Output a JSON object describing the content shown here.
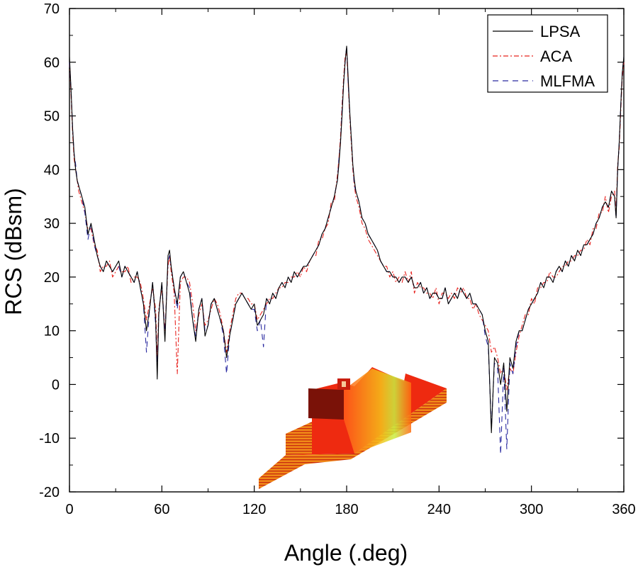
{
  "chart_data": {
    "type": "line",
    "title": "",
    "xlabel": "Angle (.deg)",
    "ylabel": "RCS (dBsm)",
    "xlim": [
      0,
      360
    ],
    "ylim": [
      -20,
      70
    ],
    "xticks": [
      0,
      60,
      120,
      180,
      240,
      300,
      360
    ],
    "yticks": [
      -20,
      -10,
      0,
      10,
      20,
      30,
      40,
      50,
      60,
      70
    ],
    "legend_position": "top-right",
    "colors": {
      "LPSA": "#000000",
      "ACA": "#e8231f",
      "MLFMA": "#2a2aa0"
    },
    "inset_description": "ship-model-3d-mesh",
    "series": [
      {
        "name": "LPSA",
        "style": "solid",
        "x": [
          0,
          1,
          2,
          3,
          4,
          5,
          6,
          8,
          10,
          12,
          14,
          16,
          18,
          20,
          22,
          24,
          26,
          28,
          30,
          32,
          34,
          36,
          38,
          40,
          42,
          44,
          46,
          48,
          50,
          52,
          54,
          56,
          57,
          58,
          60,
          62,
          64,
          65,
          66,
          68,
          70,
          72,
          74,
          76,
          78,
          80,
          82,
          84,
          86,
          88,
          90,
          92,
          94,
          96,
          98,
          100,
          102,
          104,
          106,
          108,
          110,
          112,
          114,
          116,
          118,
          120,
          122,
          124,
          126,
          128,
          130,
          132,
          134,
          136,
          138,
          140,
          142,
          144,
          146,
          148,
          150,
          152,
          154,
          156,
          158,
          160,
          162,
          164,
          166,
          168,
          170,
          172,
          174,
          175,
          176,
          177,
          178,
          179,
          180,
          181,
          182,
          183,
          184,
          185,
          186,
          188,
          190,
          192,
          194,
          196,
          198,
          200,
          202,
          204,
          206,
          208,
          210,
          212,
          214,
          216,
          218,
          220,
          222,
          224,
          226,
          228,
          230,
          232,
          234,
          236,
          238,
          240,
          242,
          244,
          246,
          248,
          250,
          252,
          254,
          256,
          258,
          260,
          262,
          264,
          266,
          268,
          270,
          272,
          274,
          276,
          278,
          280,
          282,
          284,
          286,
          288,
          290,
          292,
          294,
          296,
          298,
          300,
          302,
          304,
          306,
          308,
          310,
          312,
          314,
          316,
          318,
          320,
          322,
          324,
          326,
          328,
          330,
          332,
          334,
          336,
          338,
          340,
          342,
          344,
          346,
          348,
          350,
          352,
          354,
          355,
          356,
          357,
          358,
          359,
          360
        ],
        "y": [
          61,
          55,
          48,
          43,
          40,
          38,
          37,
          35,
          33,
          28,
          30,
          27,
          24,
          22,
          21,
          23,
          22,
          21,
          22,
          23,
          20,
          22,
          21,
          20,
          19,
          21,
          18,
          15,
          10,
          14,
          19,
          12,
          1,
          13,
          19,
          8,
          24,
          25,
          22,
          18,
          15,
          20,
          21,
          19,
          17,
          12,
          8,
          14,
          16,
          9,
          11,
          15,
          16,
          14,
          12,
          10,
          5,
          9,
          12,
          15,
          16,
          17,
          16,
          15,
          14,
          15,
          11,
          12,
          13,
          16,
          15,
          17,
          16,
          18,
          19,
          18,
          20,
          19,
          21,
          20,
          21,
          22,
          22,
          23,
          24,
          25,
          26,
          28,
          29,
          31,
          33,
          35,
          38,
          41,
          45,
          50,
          56,
          60,
          63,
          57,
          51,
          46,
          41,
          38,
          36,
          34,
          31,
          30,
          28,
          27,
          26,
          25,
          23,
          22,
          21,
          21,
          20,
          20,
          19,
          20,
          20,
          19,
          20,
          18,
          18,
          19,
          17,
          18,
          16,
          17,
          17,
          16,
          16,
          18,
          15,
          16,
          17,
          16,
          18,
          17,
          16,
          17,
          15,
          15,
          14,
          13,
          10,
          8,
          -9,
          5,
          4,
          0,
          4,
          -5,
          5,
          3,
          8,
          10,
          10,
          12,
          14,
          15,
          16,
          17,
          19,
          18,
          20,
          20,
          19,
          21,
          22,
          21,
          23,
          22,
          24,
          23,
          25,
          24,
          26,
          26,
          27,
          28,
          30,
          31,
          33,
          34,
          33,
          36,
          35,
          31,
          40,
          45,
          52,
          58,
          61
        ]
      },
      {
        "name": "ACA",
        "style": "dash-dot",
        "x": [
          0,
          1,
          2,
          3,
          4,
          5,
          6,
          8,
          10,
          12,
          14,
          16,
          18,
          20,
          22,
          24,
          26,
          28,
          30,
          32,
          34,
          36,
          38,
          40,
          42,
          44,
          46,
          48,
          50,
          52,
          54,
          56,
          57,
          58,
          60,
          62,
          64,
          65,
          66,
          68,
          70,
          72,
          74,
          76,
          78,
          80,
          82,
          84,
          86,
          88,
          90,
          92,
          94,
          96,
          98,
          100,
          102,
          104,
          106,
          108,
          110,
          112,
          114,
          116,
          118,
          120,
          122,
          124,
          126,
          128,
          130,
          132,
          134,
          136,
          138,
          140,
          142,
          144,
          146,
          148,
          150,
          152,
          154,
          156,
          158,
          160,
          162,
          164,
          166,
          168,
          170,
          172,
          174,
          175,
          176,
          177,
          178,
          179,
          180,
          181,
          182,
          183,
          184,
          185,
          186,
          188,
          190,
          192,
          194,
          196,
          198,
          200,
          202,
          204,
          206,
          208,
          210,
          212,
          214,
          216,
          218,
          220,
          222,
          224,
          226,
          228,
          230,
          232,
          234,
          236,
          238,
          240,
          242,
          244,
          246,
          248,
          250,
          252,
          254,
          256,
          258,
          260,
          262,
          264,
          266,
          268,
          270,
          272,
          274,
          276,
          278,
          280,
          282,
          284,
          286,
          288,
          290,
          292,
          294,
          296,
          298,
          300,
          302,
          304,
          306,
          308,
          310,
          312,
          314,
          316,
          318,
          320,
          322,
          324,
          326,
          328,
          330,
          332,
          334,
          336,
          338,
          340,
          342,
          344,
          346,
          348,
          350,
          352,
          354,
          355,
          356,
          357,
          358,
          359,
          360
        ],
        "y": [
          60,
          54,
          47,
          42,
          40,
          38,
          36,
          34,
          32,
          29,
          29,
          26,
          25,
          21,
          22,
          22,
          23,
          20,
          21,
          22,
          21,
          21,
          22,
          19,
          20,
          20,
          19,
          16,
          12,
          15,
          18,
          14,
          5,
          14,
          18,
          10,
          22,
          24,
          21,
          17,
          2,
          19,
          20,
          20,
          19,
          15,
          10,
          13,
          15,
          11,
          12,
          14,
          16,
          15,
          13,
          10,
          6,
          10,
          13,
          16,
          17,
          17,
          16,
          16,
          15,
          15,
          12,
          13,
          14,
          15,
          16,
          16,
          17,
          18,
          18,
          19,
          19,
          20,
          20,
          21,
          20,
          22,
          21,
          23,
          24,
          24,
          27,
          27,
          29,
          30,
          34,
          34,
          39,
          42,
          46,
          52,
          57,
          61,
          62,
          56,
          50,
          45,
          40,
          37,
          35,
          33,
          30,
          29,
          27,
          26,
          25,
          24,
          23,
          22,
          22,
          20,
          21,
          19,
          20,
          19,
          21,
          19,
          21,
          17,
          19,
          18,
          18,
          17,
          17,
          16,
          18,
          15,
          17,
          17,
          16,
          17,
          16,
          18,
          17,
          18,
          16,
          16,
          14,
          15,
          13,
          12,
          11,
          10,
          6,
          7,
          5,
          2,
          3,
          -1,
          3,
          2,
          6,
          9,
          11,
          13,
          13,
          16,
          15,
          18,
          18,
          19,
          19,
          21,
          20,
          20,
          21,
          22,
          22,
          23,
          23,
          24,
          24,
          25,
          25,
          27,
          26,
          29,
          29,
          32,
          32,
          35,
          32,
          35,
          36,
          32,
          41,
          44,
          51,
          57,
          60
        ]
      },
      {
        "name": "MLFMA",
        "style": "dashed",
        "x": [
          0,
          1,
          2,
          3,
          4,
          5,
          6,
          8,
          10,
          12,
          14,
          16,
          18,
          20,
          22,
          24,
          26,
          28,
          30,
          32,
          34,
          36,
          38,
          40,
          42,
          44,
          46,
          48,
          50,
          52,
          54,
          56,
          57,
          58,
          60,
          62,
          64,
          65,
          66,
          68,
          70,
          72,
          74,
          76,
          78,
          80,
          82,
          84,
          86,
          88,
          90,
          92,
          94,
          96,
          98,
          100,
          102,
          104,
          106,
          108,
          110,
          112,
          114,
          116,
          118,
          120,
          122,
          124,
          126,
          128,
          130,
          132,
          134,
          136,
          138,
          140,
          142,
          144,
          146,
          148,
          150,
          152,
          154,
          156,
          158,
          160,
          162,
          164,
          166,
          168,
          170,
          172,
          174,
          175,
          176,
          177,
          178,
          179,
          180,
          181,
          182,
          183,
          184,
          185,
          186,
          188,
          190,
          192,
          194,
          196,
          198,
          200,
          202,
          204,
          206,
          208,
          210,
          212,
          214,
          216,
          218,
          220,
          222,
          224,
          226,
          228,
          230,
          232,
          234,
          236,
          238,
          240,
          242,
          244,
          246,
          248,
          250,
          252,
          254,
          256,
          258,
          260,
          262,
          264,
          266,
          268,
          270,
          272,
          274,
          276,
          278,
          280,
          282,
          284,
          286,
          288,
          290,
          292,
          294,
          296,
          298,
          300,
          302,
          304,
          306,
          308,
          310,
          312,
          314,
          316,
          318,
          320,
          322,
          324,
          326,
          328,
          330,
          332,
          334,
          336,
          338,
          340,
          342,
          344,
          346,
          348,
          350,
          352,
          354,
          355,
          356,
          357,
          358,
          359,
          360
        ],
        "y": [
          60,
          55,
          48,
          43,
          41,
          38,
          37,
          35,
          32,
          27,
          30,
          26,
          24,
          22,
          21,
          23,
          22,
          21,
          22,
          22,
          20,
          22,
          21,
          20,
          19,
          21,
          18,
          15,
          6,
          14,
          19,
          11,
          3,
          13,
          19,
          9,
          23,
          24,
          22,
          18,
          14,
          20,
          21,
          19,
          18,
          12,
          9,
          14,
          16,
          10,
          11,
          15,
          16,
          14,
          12,
          9,
          2,
          9,
          12,
          15,
          16,
          17,
          16,
          15,
          14,
          14,
          10,
          12,
          7,
          16,
          15,
          17,
          16,
          18,
          19,
          18,
          20,
          19,
          21,
          20,
          21,
          22,
          22,
          23,
          24,
          25,
          26,
          28,
          29,
          31,
          33,
          35,
          38,
          42,
          45,
          51,
          56,
          60,
          63,
          56,
          51,
          46,
          41,
          37,
          36,
          34,
          31,
          30,
          28,
          27,
          26,
          25,
          23,
          22,
          21,
          21,
          20,
          20,
          19,
          20,
          20,
          19,
          20,
          18,
          18,
          19,
          17,
          18,
          16,
          17,
          17,
          16,
          16,
          18,
          15,
          16,
          17,
          16,
          18,
          17,
          16,
          17,
          15,
          15,
          14,
          13,
          9,
          7,
          -8,
          4,
          3,
          -13,
          3,
          -12,
          4,
          2,
          7,
          10,
          10,
          12,
          14,
          15,
          16,
          17,
          19,
          18,
          20,
          20,
          19,
          21,
          22,
          21,
          23,
          22,
          24,
          23,
          25,
          24,
          26,
          26,
          27,
          28,
          30,
          31,
          33,
          34,
          33,
          36,
          35,
          31,
          40,
          45,
          52,
          58,
          61
        ]
      }
    ]
  }
}
